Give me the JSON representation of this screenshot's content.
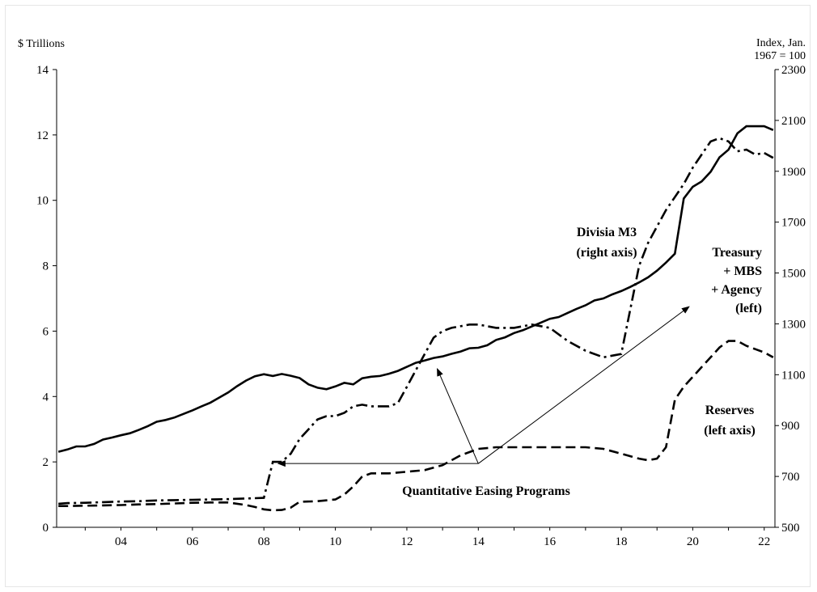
{
  "chart_data": {
    "type": "line",
    "left_axis": {
      "label": "$ Trillions",
      "ylim": [
        0,
        14
      ],
      "ticks": [
        0,
        2,
        4,
        6,
        8,
        10,
        12,
        14
      ]
    },
    "right_axis": {
      "label_line1": "Index, Jan.",
      "label_line2": "1967 = 100",
      "ylim": [
        500,
        2300
      ],
      "ticks": [
        500,
        700,
        900,
        1100,
        1300,
        1500,
        1700,
        1900,
        2100,
        2300
      ]
    },
    "x_axis": {
      "xlim": [
        2002.2,
        2022.3
      ],
      "ticks": [
        2004,
        2006,
        2008,
        2010,
        2012,
        2014,
        2016,
        2018,
        2020,
        2022
      ],
      "tick_labels": [
        "04",
        "06",
        "08",
        "10",
        "12",
        "14",
        "16",
        "18",
        "20",
        "22"
      ]
    },
    "series": [
      {
        "id": "divisia",
        "axis": "right",
        "style": "solid",
        "x": [
          2002.25,
          2002.5,
          2002.75,
          2003.0,
          2003.25,
          2003.5,
          2003.75,
          2004.0,
          2004.25,
          2004.5,
          2004.75,
          2005.0,
          2005.25,
          2005.5,
          2005.75,
          2006.0,
          2006.25,
          2006.5,
          2006.75,
          2007.0,
          2007.25,
          2007.5,
          2007.75,
          2008.0,
          2008.25,
          2008.5,
          2008.75,
          2009.0,
          2009.25,
          2009.5,
          2009.75,
          2010.0,
          2010.25,
          2010.5,
          2010.75,
          2011.0,
          2011.25,
          2011.5,
          2011.75,
          2012.0,
          2012.25,
          2012.5,
          2012.75,
          2013.0,
          2013.25,
          2013.5,
          2013.75,
          2014.0,
          2014.25,
          2014.5,
          2014.75,
          2015.0,
          2015.25,
          2015.5,
          2015.75,
          2016.0,
          2016.25,
          2016.5,
          2016.75,
          2017.0,
          2017.25,
          2017.5,
          2017.75,
          2018.0,
          2018.25,
          2018.5,
          2018.75,
          2019.0,
          2019.25,
          2019.5,
          2019.75,
          2020.0,
          2020.25,
          2020.5,
          2020.75,
          2021.0,
          2021.25,
          2021.5,
          2021.75,
          2022.0,
          2022.25
        ],
        "values": [
          797,
          806,
          818,
          818,
          828,
          845,
          853,
          862,
          870,
          883,
          898,
          915,
          922,
          932,
          946,
          960,
          975,
          990,
          1010,
          1030,
          1055,
          1077,
          1094,
          1102,
          1095,
          1103,
          1096,
          1087,
          1062,
          1049,
          1043,
          1054,
          1068,
          1062,
          1086,
          1092,
          1095,
          1104,
          1115,
          1131,
          1147,
          1156,
          1166,
          1172,
          1182,
          1191,
          1204,
          1206,
          1216,
          1237,
          1247,
          1264,
          1275,
          1290,
          1305,
          1320,
          1327,
          1343,
          1359,
          1373,
          1392,
          1400,
          1416,
          1429,
          1445,
          1463,
          1483,
          1509,
          1541,
          1576,
          1793,
          1839,
          1860,
          1898,
          1955,
          1985,
          2049,
          2077,
          2077,
          2077,
          2062
        ]
      },
      {
        "id": "treasury_mbs_agency",
        "axis": "left",
        "style": "dashdot",
        "x": [
          2002.25,
          2002.5,
          2003.0,
          2003.5,
          2004.0,
          2004.5,
          2005.0,
          2005.5,
          2006.0,
          2006.5,
          2007.0,
          2007.5,
          2008.0,
          2008.25,
          2008.5,
          2008.75,
          2009.0,
          2009.25,
          2009.5,
          2009.75,
          2010.0,
          2010.25,
          2010.5,
          2010.75,
          2011.0,
          2011.25,
          2011.5,
          2011.75,
          2012.0,
          2012.25,
          2012.5,
          2012.75,
          2013.0,
          2013.25,
          2013.5,
          2013.75,
          2014.0,
          2014.5,
          2015.0,
          2015.5,
          2016.0,
          2016.5,
          2017.0,
          2017.5,
          2018.0,
          2018.5,
          2018.75,
          2019.0,
          2019.25,
          2019.5,
          2019.75,
          2020.0,
          2020.25,
          2020.5,
          2020.75,
          2021.0,
          2021.25,
          2021.5,
          2021.75,
          2022.0,
          2022.25
        ],
        "values": [
          0.72,
          0.74,
          0.75,
          0.77,
          0.79,
          0.8,
          0.82,
          0.83,
          0.84,
          0.85,
          0.86,
          0.88,
          0.9,
          2.0,
          2.0,
          2.25,
          2.7,
          3.0,
          3.3,
          3.4,
          3.4,
          3.5,
          3.7,
          3.75,
          3.7,
          3.7,
          3.7,
          3.8,
          4.3,
          4.8,
          5.3,
          5.8,
          6.0,
          6.1,
          6.15,
          6.2,
          6.2,
          6.1,
          6.1,
          6.2,
          6.1,
          5.7,
          5.4,
          5.2,
          5.3,
          8.0,
          8.7,
          9.2,
          9.7,
          10.1,
          10.5,
          11.0,
          11.4,
          11.8,
          11.9,
          11.8,
          11.5,
          11.55,
          11.4,
          11.45,
          11.3
        ]
      },
      {
        "id": "reserves",
        "axis": "left",
        "style": "dashed",
        "x": [
          2002.25,
          2002.5,
          2003.0,
          2003.5,
          2004.0,
          2004.5,
          2005.0,
          2005.5,
          2006.0,
          2006.5,
          2007.0,
          2007.5,
          2007.75,
          2008.0,
          2008.25,
          2008.5,
          2008.75,
          2009.0,
          2009.5,
          2010.0,
          2010.25,
          2010.5,
          2010.75,
          2011.0,
          2011.5,
          2012.0,
          2012.5,
          2013.0,
          2013.5,
          2014.0,
          2014.5,
          2015.0,
          2015.5,
          2016.0,
          2016.5,
          2017.0,
          2017.5,
          2018.0,
          2018.5,
          2018.75,
          2019.0,
          2019.25,
          2019.5,
          2019.75,
          2020.0,
          2020.25,
          2020.5,
          2020.75,
          2021.0,
          2021.25,
          2021.5,
          2021.75,
          2022.0,
          2022.25
        ],
        "values": [
          0.65,
          0.65,
          0.66,
          0.67,
          0.68,
          0.7,
          0.71,
          0.73,
          0.75,
          0.76,
          0.76,
          0.68,
          0.62,
          0.55,
          0.52,
          0.53,
          0.6,
          0.78,
          0.8,
          0.85,
          1.0,
          1.25,
          1.55,
          1.65,
          1.65,
          1.7,
          1.75,
          1.9,
          2.2,
          2.4,
          2.45,
          2.45,
          2.45,
          2.45,
          2.45,
          2.45,
          2.4,
          2.25,
          2.1,
          2.05,
          2.1,
          2.45,
          3.9,
          4.3,
          4.6,
          4.9,
          5.2,
          5.5,
          5.7,
          5.7,
          5.55,
          5.45,
          5.35,
          5.2
        ]
      }
    ],
    "annotations": {
      "divisia_label": [
        "Divisia M3",
        "(right axis)"
      ],
      "treasury_label": [
        "Treasury",
        "+ MBS",
        "+ Agency",
        "(left)"
      ],
      "reserves_label": [
        "Reserves",
        "(left axis)"
      ],
      "qe_label": "Quantitative Easing Programs"
    },
    "arrows": [
      {
        "from_x": 2014.0,
        "from_y": 1.95,
        "to_x": 2008.4,
        "to_y": 1.95
      },
      {
        "from_x": 2014.0,
        "from_y": 1.95,
        "to_x": 2012.85,
        "to_y": 4.85
      },
      {
        "from_x": 2014.0,
        "from_y": 1.95,
        "to_x": 2019.9,
        "to_y": 6.75
      }
    ]
  }
}
